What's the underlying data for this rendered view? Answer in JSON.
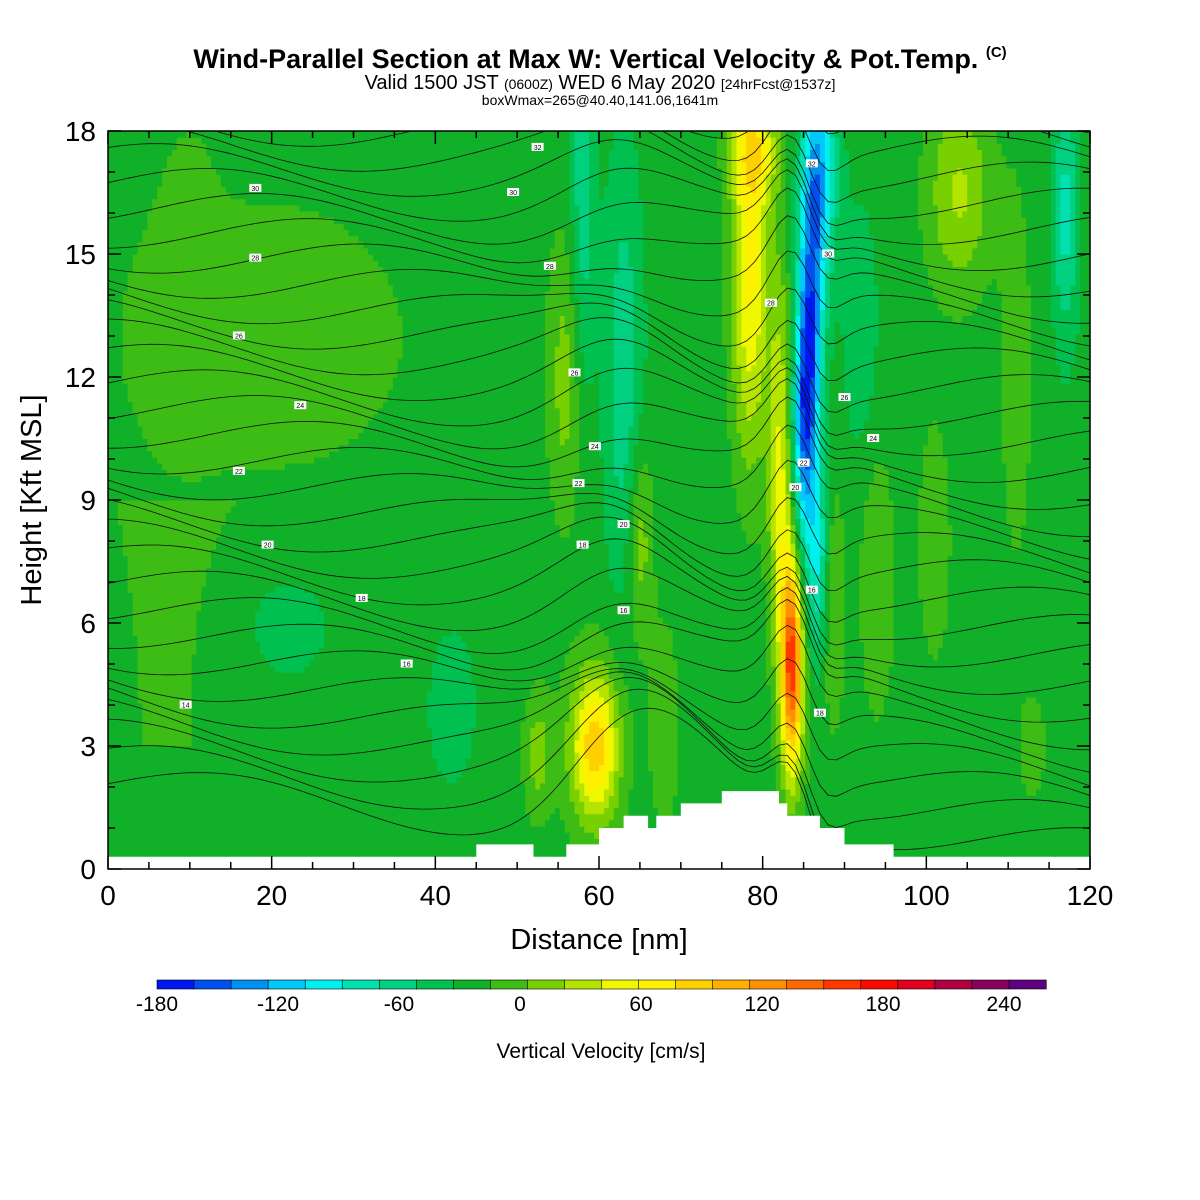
{
  "header": {
    "title_main": "Wind-Parallel Section at Max W: Vertical Velocity & Pot.Temp.",
    "title_mark": "(C)",
    "valid_a": "Valid 1500 JST ",
    "valid_b": "(0600Z)",
    "valid_c": " WED 6 May 2020 ",
    "valid_d": "[24hrFcst@1537z]",
    "subtitle": "boxWmax=265@40.40,141.06,1641m"
  },
  "chart_data": {
    "type": "heatmap",
    "xlabel": "Distance [nm]",
    "ylabel": "Height [Kft MSL]",
    "xlim": [
      0,
      120
    ],
    "ylim": [
      0,
      18
    ],
    "x_ticks": [
      0,
      20,
      40,
      60,
      80,
      100,
      120
    ],
    "y_ticks": [
      0,
      3,
      6,
      9,
      12,
      15,
      18
    ],
    "x_tick_labels": [
      "0",
      "20",
      "40",
      "60",
      "80",
      "100",
      "120"
    ],
    "y_tick_labels": [
      "0",
      "3",
      "6",
      "9",
      "12",
      "15",
      "18"
    ],
    "colorbar": {
      "title": "Vertical Velocity [cm/s]",
      "levels": [
        -180,
        -160,
        -140,
        -120,
        -100,
        -80,
        -60,
        -40,
        -20,
        0,
        20,
        40,
        60,
        80,
        100,
        120,
        140,
        160,
        180,
        200,
        220,
        240,
        260,
        280
      ],
      "tick_values": [
        -180,
        -120,
        -60,
        0,
        60,
        120,
        180,
        240
      ],
      "tick_labels": [
        "-180",
        "-120",
        "-60",
        "0",
        "60",
        "120",
        "180",
        "240"
      ],
      "colors": [
        "#0018f0",
        "#0050f0",
        "#0090f0",
        "#00c8f8",
        "#00f0f0",
        "#00e0b0",
        "#00d080",
        "#00c050",
        "#10b028",
        "#3cbc14",
        "#78d000",
        "#b4e400",
        "#f0f800",
        "#fff000",
        "#ffd000",
        "#ffb000",
        "#ff9000",
        "#ff6800",
        "#ff3800",
        "#ff0800",
        "#e00020",
        "#b00040",
        "#880060",
        "#600080"
      ]
    },
    "terrain": [
      [
        0,
        0.3
      ],
      [
        45,
        0.3
      ],
      [
        45,
        0.6
      ],
      [
        52,
        0.6
      ],
      [
        52,
        0.3
      ],
      [
        56,
        0.3
      ],
      [
        56,
        0.6
      ],
      [
        60,
        0.6
      ],
      [
        60,
        1.0
      ],
      [
        63,
        1.0
      ],
      [
        63,
        1.3
      ],
      [
        66,
        1.3
      ],
      [
        66,
        1.0
      ],
      [
        67,
        1.0
      ],
      [
        67,
        1.3
      ],
      [
        70,
        1.3
      ],
      [
        70,
        1.6
      ],
      [
        75,
        1.6
      ],
      [
        75,
        1.9
      ],
      [
        82,
        1.9
      ],
      [
        82,
        1.6
      ],
      [
        83,
        1.6
      ],
      [
        83,
        1.3
      ],
      [
        87,
        1.3
      ],
      [
        87,
        1.0
      ],
      [
        90,
        1.0
      ],
      [
        90,
        0.6
      ],
      [
        96,
        0.6
      ],
      [
        96,
        0.3
      ],
      [
        120,
        0.3
      ]
    ],
    "theta_labels": [
      {
        "x": 52.5,
        "y": 17.6,
        "text": "32"
      },
      {
        "x": 18,
        "y": 16.6,
        "text": "30"
      },
      {
        "x": 49.5,
        "y": 16.5,
        "text": "30"
      },
      {
        "x": 86,
        "y": 17.2,
        "text": "32"
      },
      {
        "x": 18,
        "y": 14.9,
        "text": "28"
      },
      {
        "x": 54,
        "y": 14.7,
        "text": "28"
      },
      {
        "x": 88,
        "y": 15.0,
        "text": "30"
      },
      {
        "x": 16,
        "y": 13.0,
        "text": "26"
      },
      {
        "x": 81,
        "y": 13.8,
        "text": "28"
      },
      {
        "x": 57,
        "y": 12.1,
        "text": "26"
      },
      {
        "x": 23.5,
        "y": 11.3,
        "text": "24"
      },
      {
        "x": 90,
        "y": 11.5,
        "text": "26"
      },
      {
        "x": 59.5,
        "y": 10.3,
        "text": "24"
      },
      {
        "x": 93.5,
        "y": 10.5,
        "text": "24"
      },
      {
        "x": 16,
        "y": 9.7,
        "text": "22"
      },
      {
        "x": 57.5,
        "y": 9.4,
        "text": "22"
      },
      {
        "x": 85,
        "y": 9.9,
        "text": "22"
      },
      {
        "x": 84,
        "y": 9.3,
        "text": "20"
      },
      {
        "x": 63,
        "y": 8.4,
        "text": "20"
      },
      {
        "x": 19.5,
        "y": 7.9,
        "text": "20"
      },
      {
        "x": 58,
        "y": 7.9,
        "text": "18"
      },
      {
        "x": 31,
        "y": 6.6,
        "text": "18"
      },
      {
        "x": 63,
        "y": 6.3,
        "text": "16"
      },
      {
        "x": 86,
        "y": 6.8,
        "text": "16"
      },
      {
        "x": 36.5,
        "y": 5.0,
        "text": "16"
      },
      {
        "x": 9.5,
        "y": 4.0,
        "text": "14"
      },
      {
        "x": 87,
        "y": 3.8,
        "text": "18"
      }
    ]
  }
}
